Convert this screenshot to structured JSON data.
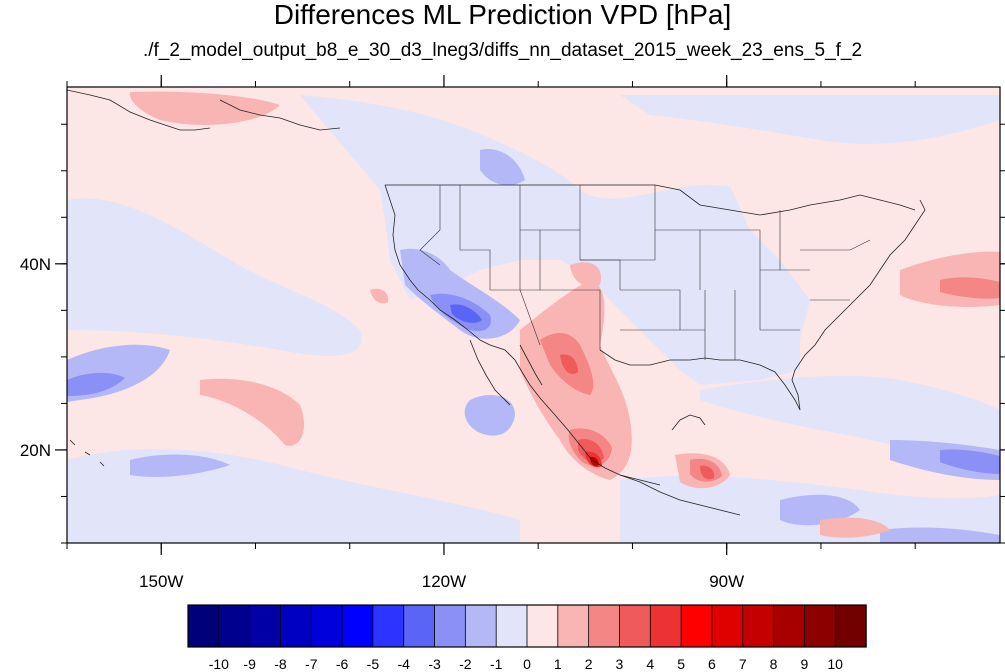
{
  "title": "Differences ML Prediction VPD [hPa]",
  "subtitle": "./f_2_model_output_b8_e_30_d3_lneg3/diffs_nn_dataset_2015_week_23_ens_5_f_2",
  "map": {
    "lon_range": [
      -160,
      -61
    ],
    "lat_range": [
      10,
      59
    ],
    "lon_ticks": [
      {
        "value": -150,
        "label": "150W"
      },
      {
        "value": -120,
        "label": "120W"
      },
      {
        "value": -90,
        "label": "90W"
      }
    ],
    "lat_ticks": [
      {
        "value": 40,
        "label": "40N"
      },
      {
        "value": 20,
        "label": "20N"
      }
    ]
  },
  "colorbar": {
    "labels": [
      "-10",
      "-9",
      "-8",
      "-7",
      "-6",
      "-5",
      "-4",
      "-3",
      "-2",
      "-1",
      "0",
      "1",
      "2",
      "3",
      "4",
      "5",
      "6",
      "7",
      "8",
      "9",
      "10"
    ],
    "colors": [
      "#00007a",
      "#00008f",
      "#0000a6",
      "#0000c2",
      "#0000dd",
      "#0000ff",
      "#2e34ff",
      "#5a64f7",
      "#8a90f5",
      "#b4b8f7",
      "#e2e4fa",
      "#fde6e6",
      "#f9b4b4",
      "#f48686",
      "#ef5a5a",
      "#ec3232",
      "#ff0000",
      "#e00000",
      "#c40000",
      "#a80000",
      "#8c0000",
      "#730000"
    ]
  }
}
